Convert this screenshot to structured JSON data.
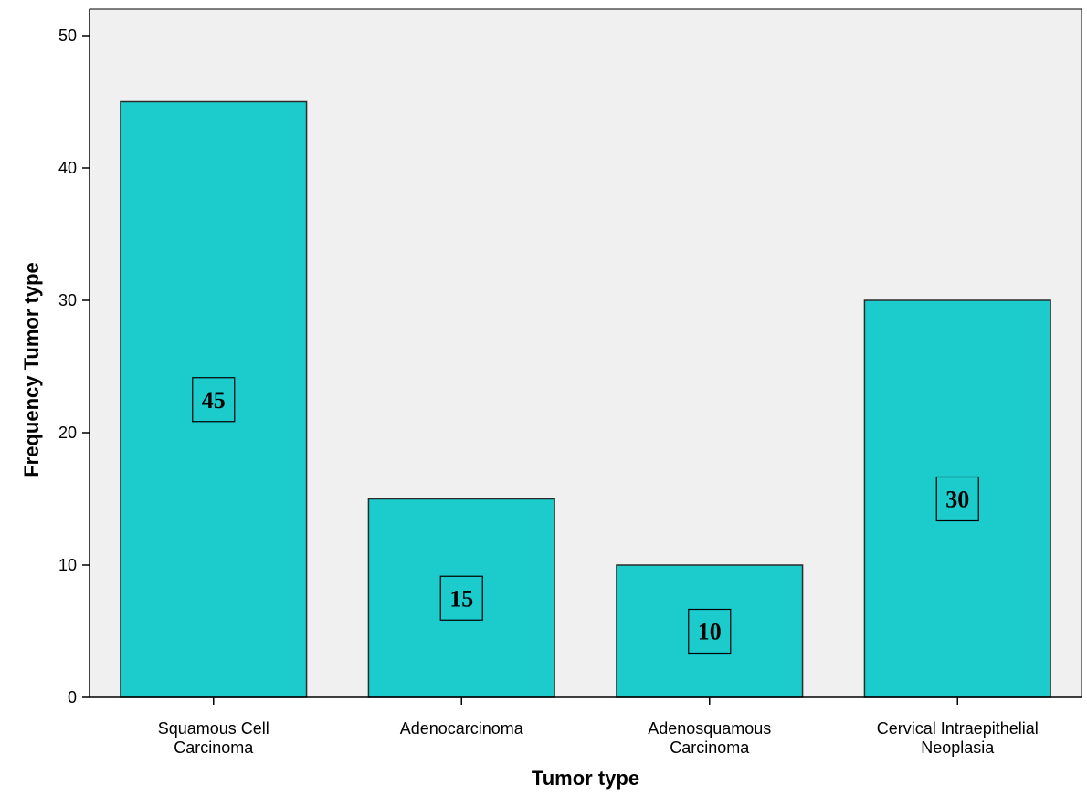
{
  "chart_data": {
    "type": "bar",
    "title": "",
    "xlabel": "Tumor type",
    "ylabel": "Frequency Tumor type",
    "categories": [
      [
        "Squamous Cell",
        "Carcinoma"
      ],
      [
        "Adenocarcinoma"
      ],
      [
        "Adenosquamous",
        "Carcinoma"
      ],
      [
        "Cervical Intraepithelial",
        "Neoplasia"
      ]
    ],
    "values": [
      45,
      15,
      10,
      30
    ],
    "data_labels": [
      "45",
      "15",
      "10",
      "30"
    ],
    "ylim": [
      0,
      52
    ],
    "yticks": [
      "0",
      "10",
      "20",
      "30",
      "40",
      "50"
    ],
    "grid": false,
    "legend": "none",
    "colors": {
      "bar_fill": "#1ccccd",
      "bar_stroke": "#2a2a2a",
      "plot_bg": "#f0f0f0",
      "axis": "#000000"
    }
  }
}
